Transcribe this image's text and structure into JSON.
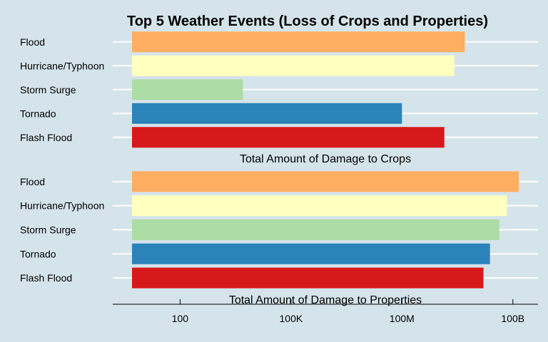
{
  "title": "Top 5 Weather Events (Loss of Crops and Properties)",
  "x_tick_labels": [
    "100",
    "100K",
    "100M",
    "100B"
  ],
  "chart_data": [
    {
      "type": "bar",
      "orientation": "horizontal",
      "xscale": "log",
      "title": "",
      "xlabel": "Total Amount of Damage to Crops",
      "ylabel": "",
      "categories": [
        "Flood",
        "Hurricane/Typhoon",
        "Storm Surge",
        "Tornado",
        "Flash Flood"
      ],
      "values": [
        5000000000,
        2600000000,
        5000,
        100000000,
        1400000000
      ],
      "colors": [
        "#fdae61",
        "#ffffbf",
        "#abdda4",
        "#2b83ba",
        "#d7191c"
      ],
      "xlim": [
        5,
        500000000000
      ],
      "x_ticks": [
        100,
        100000,
        100000000,
        100000000000
      ],
      "grid": true
    },
    {
      "type": "bar",
      "orientation": "horizontal",
      "xscale": "log",
      "title": "",
      "xlabel": "Total Amount of Damage to Properties",
      "ylabel": "",
      "categories": [
        "Flood",
        "Hurricane/Typhoon",
        "Storm Surge",
        "Tornado",
        "Flash Flood"
      ],
      "values": [
        145000000000,
        69000000000,
        43000000000,
        24000000000,
        16000000000
      ],
      "colors": [
        "#fdae61",
        "#ffffbf",
        "#abdda4",
        "#2b83ba",
        "#d7191c"
      ],
      "xlim": [
        5,
        500000000000
      ],
      "x_ticks": [
        100,
        100000,
        100000000,
        100000000000
      ],
      "grid": true
    }
  ]
}
